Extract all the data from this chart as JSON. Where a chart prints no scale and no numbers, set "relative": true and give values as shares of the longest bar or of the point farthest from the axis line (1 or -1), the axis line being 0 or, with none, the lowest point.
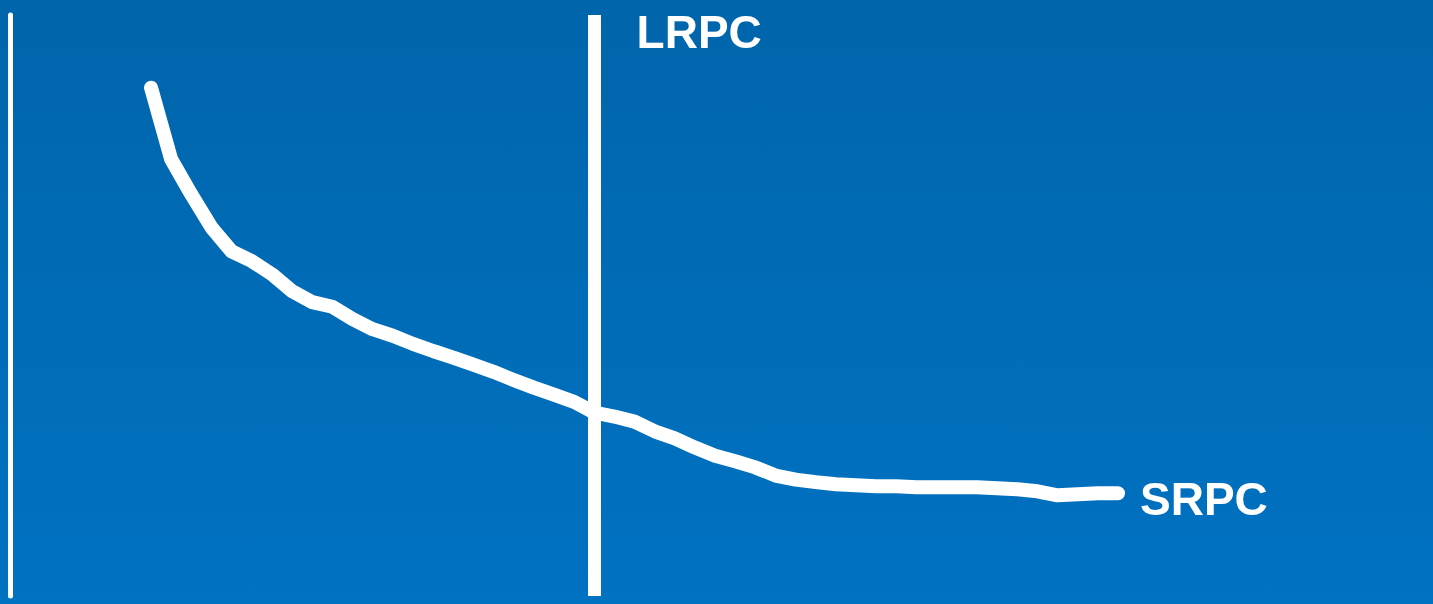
{
  "chart_data": {
    "type": "line",
    "relative": true,
    "grid": false,
    "legend": false,
    "line_style": "solid",
    "categories": [
      null,
      null,
      null,
      null,
      null,
      null,
      null,
      null,
      null,
      null,
      null,
      null,
      null,
      null,
      null,
      null,
      null,
      null,
      null,
      null,
      null,
      null,
      null,
      null,
      null,
      null,
      null,
      null,
      null,
      null,
      null,
      null,
      null,
      null,
      null,
      null,
      null,
      null,
      null,
      null,
      null,
      null,
      null,
      null,
      null,
      null,
      null,
      null,
      null
    ],
    "series": [
      {
        "name": "SRPC",
        "color": "#ffffff",
        "values": [
          1,
          0.859,
          0.79,
          0.725,
          0.678,
          0.659,
          0.633,
          0.6,
          0.578,
          0.569,
          0.545,
          0.525,
          0.512,
          0.496,
          0.482,
          0.469,
          0.455,
          0.441,
          0.425,
          0.41,
          0.396,
          0.382,
          0.361,
          0.353,
          0.343,
          0.324,
          0.31,
          0.292,
          0.276,
          0.265,
          0.253,
          0.237,
          0.229,
          0.224,
          0.22,
          0.218,
          0.216,
          0.216,
          0.214,
          0.214,
          0.214,
          0.214,
          0.212,
          0.21,
          0.206,
          0.198,
          0.2,
          0.202,
          0.202
        ]
      }
    ],
    "annotations": [
      "LRPC"
    ]
  }
}
